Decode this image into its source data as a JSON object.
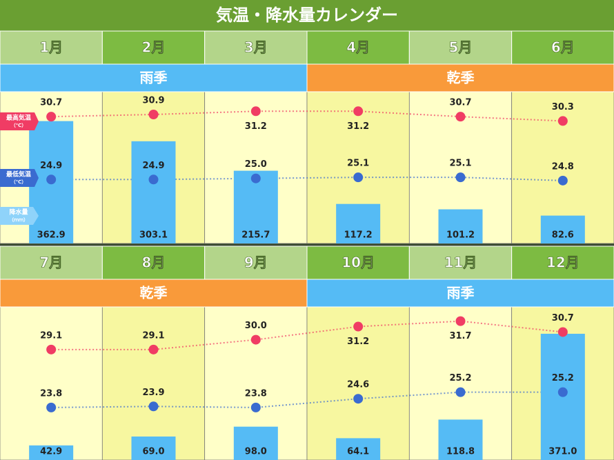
{
  "chart_data": {
    "type": "combo",
    "title": "気温・降水量カレンダー",
    "categories": [
      "1月",
      "2月",
      "3月",
      "4月",
      "5月",
      "6月",
      "7月",
      "8月",
      "9月",
      "10月",
      "11月",
      "12月"
    ],
    "seasons": [
      {
        "name": "雨季",
        "months": 3,
        "color": "#55bbf5"
      },
      {
        "name": "乾季",
        "months": 3,
        "color": "#f99a3a"
      },
      {
        "name": "乾季",
        "months": 3,
        "color": "#f99a3a"
      },
      {
        "name": "雨季",
        "months": 3,
        "color": "#55bbf5"
      }
    ],
    "ylim": [
      0,
      450
    ],
    "y2lim": [
      19,
      33
    ],
    "series": [
      {
        "name": "降水量",
        "unit": "（ｍｍ）",
        "type": "bar",
        "color": "#55bbf5",
        "values": [
          362.9,
          303.1,
          215.7,
          117.2,
          101.2,
          82.6,
          42.9,
          69.0,
          98.0,
          64.1,
          118.8,
          371.0
        ],
        "value_labels": [
          "362.9",
          "303.1",
          "215.7",
          "117.2",
          "101.2",
          "82.6",
          "42.9",
          "69.0",
          "98.0",
          "64.1",
          "118.8",
          "371.0"
        ]
      },
      {
        "name": "最高気温",
        "unit": "（℃）",
        "type": "line",
        "axis": "y2",
        "color": "#f03c64",
        "values": [
          30.7,
          30.9,
          31.2,
          31.2,
          30.7,
          30.3,
          29.1,
          29.1,
          30.0,
          31.2,
          31.7,
          30.7
        ],
        "value_labels": [
          "30.7",
          "30.9",
          "31.2",
          "31.2",
          "30.7",
          "30.3",
          "29.1",
          "29.1",
          "30.0",
          "31.2",
          "31.7",
          "30.7"
        ]
      },
      {
        "name": "最低気温",
        "unit": "（℃）",
        "type": "line",
        "axis": "y2",
        "color": "#3a6bd0",
        "values": [
          24.9,
          24.9,
          25.0,
          25.1,
          25.1,
          24.8,
          23.8,
          23.9,
          23.8,
          24.6,
          25.2,
          25.2
        ],
        "value_labels": [
          "24.9",
          "24.9",
          "25.0",
          "25.1",
          "25.1",
          "24.8",
          "23.8",
          "23.9",
          "23.8",
          "24.6",
          "25.2",
          "25.2"
        ]
      }
    ]
  }
}
